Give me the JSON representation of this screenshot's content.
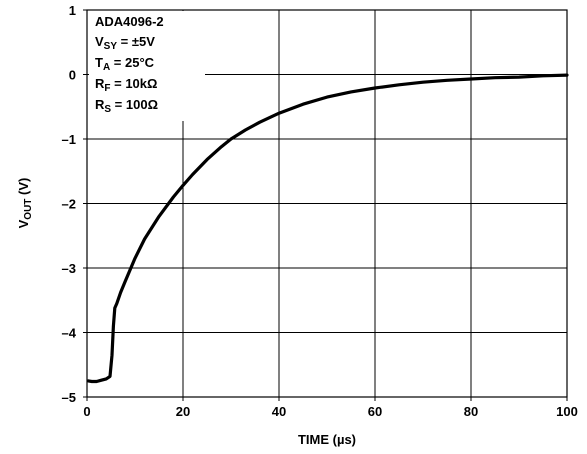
{
  "chart_data": {
    "type": "line",
    "xlabel": "TIME (µs)",
    "ylabel": {
      "main": "V",
      "sub": "OUT",
      "unit": " (V)"
    },
    "xlim": [
      0,
      100
    ],
    "ylim": [
      -5,
      1
    ],
    "xticks": [
      0,
      20,
      40,
      60,
      80,
      100
    ],
    "yticks": [
      1,
      0,
      -1,
      -2,
      -3,
      -4,
      -5
    ],
    "ytick_labels": [
      "1",
      "0",
      "–1",
      "–2",
      "–3",
      "–4",
      "–5"
    ],
    "grid": true,
    "annotation": [
      {
        "main": "ADA4096-2",
        "sub": "",
        "rest": ""
      },
      {
        "main": "V",
        "sub": "SY",
        "rest": " = ±5V"
      },
      {
        "main": "T",
        "sub": "A",
        "rest": " = 25°C"
      },
      {
        "main": "R",
        "sub": "F",
        "rest": " = 10kΩ"
      },
      {
        "main": "R",
        "sub": "S",
        "rest": " = 100Ω"
      }
    ],
    "series": [
      {
        "color": "#000000",
        "x": [
          0.3,
          1,
          2,
          3,
          4,
          4.8,
          5.2,
          5.5,
          5.8,
          6.2,
          7,
          8,
          10,
          12,
          15,
          18,
          20,
          22,
          25,
          28,
          30,
          33,
          36,
          40,
          45,
          50,
          55,
          60,
          65,
          70,
          75,
          80,
          85,
          90,
          95,
          100
        ],
        "y": [
          -4.75,
          -4.76,
          -4.76,
          -4.74,
          -4.72,
          -4.68,
          -4.35,
          -3.9,
          -3.62,
          -3.55,
          -3.38,
          -3.2,
          -2.85,
          -2.55,
          -2.2,
          -1.9,
          -1.72,
          -1.55,
          -1.32,
          -1.12,
          -1.0,
          -0.86,
          -0.74,
          -0.6,
          -0.46,
          -0.35,
          -0.27,
          -0.21,
          -0.16,
          -0.12,
          -0.09,
          -0.07,
          -0.05,
          -0.04,
          -0.02,
          -0.01
        ]
      }
    ]
  }
}
